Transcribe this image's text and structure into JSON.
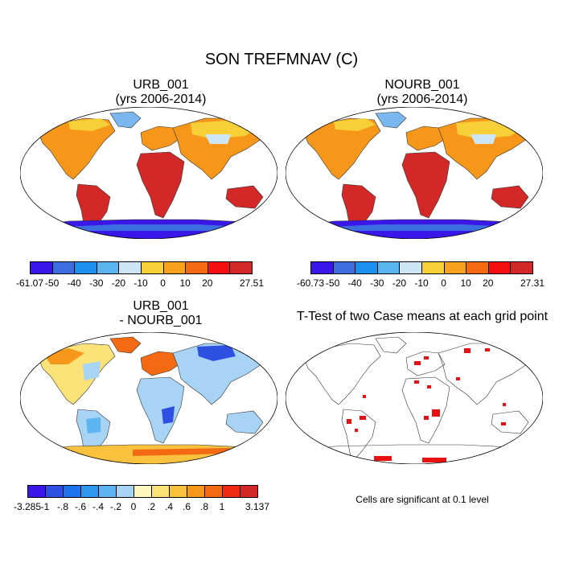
{
  "main_title": "SON TREFMNAV (C)",
  "panels": [
    {
      "id": "urb",
      "title_line1": "URB_001",
      "title_line2": "(yrs 2006-2014)",
      "type": "temperature"
    },
    {
      "id": "nourb",
      "title_line1": "NOURB_001",
      "title_line2": "(yrs 2006-2014)",
      "type": "temperature"
    },
    {
      "id": "diff",
      "title_line1": "URB_001",
      "title_line2": "- NOURB_001",
      "type": "difference"
    },
    {
      "id": "ttest",
      "title_line1": "T-Test of two Case means at each grid point",
      "title_line2": "",
      "type": "significance"
    }
  ],
  "colorbars": {
    "urb": {
      "labels": [
        "-61.07",
        "-50",
        "-40",
        "-30",
        "-20",
        "-10",
        "0",
        "10",
        "20",
        "27.51"
      ],
      "colors": [
        "#3a17e8",
        "#3d6ee0",
        "#1d8fee",
        "#5ab4ee",
        "#cde6f5",
        "#f7d038",
        "#f7a11c",
        "#f56a10",
        "#f51010",
        "#d42828"
      ]
    },
    "nourb": {
      "labels": [
        "-60.73",
        "-50",
        "-40",
        "-30",
        "-20",
        "-10",
        "0",
        "10",
        "20",
        "27.31"
      ],
      "colors": [
        "#3a17e8",
        "#3d6ee0",
        "#1d8fee",
        "#5ab4ee",
        "#cde6f5",
        "#f7d038",
        "#f7a11c",
        "#f56a10",
        "#f51010",
        "#d42828"
      ]
    },
    "diff": {
      "labels": [
        "-3.285",
        "-1",
        "-.8",
        "-.6",
        "-.4",
        "-.2",
        "0",
        ".2",
        ".4",
        ".6",
        ".8",
        "1",
        "3.137"
      ],
      "colors": [
        "#3a17e8",
        "#2d4fe2",
        "#1d73ee",
        "#2e98f0",
        "#5cb4f2",
        "#a7d3f5",
        "#fff7bd",
        "#fbe37a",
        "#f8c23e",
        "#f6971a",
        "#f46a12",
        "#ef2a12",
        "#d42828"
      ]
    }
  },
  "significance_note": "Cells are significant at 0.1 level",
  "significance_color": "#e81010"
}
